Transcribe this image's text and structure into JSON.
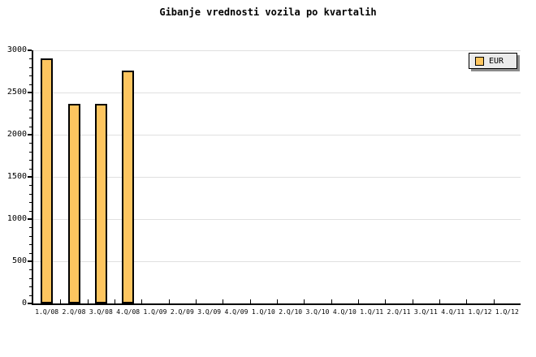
{
  "colors": {
    "background": "#FFFFFF",
    "bar_fill": "#FDC55F",
    "bar_border": "#000000",
    "grid": "#E0E0E0",
    "axis": "#000000",
    "legend_bg": "#EBEBEB",
    "legend_border": "#000000",
    "legend_shadow": "#8C8C8C"
  },
  "legend": {
    "label": "EUR"
  },
  "chart_data": {
    "type": "bar",
    "title": "Gibanje vrednosti vozila po kvartalih",
    "categories": [
      "1.Q/08",
      "2.Q/08",
      "3.Q/08",
      "4.Q/08",
      "1.Q/09",
      "2.Q/09",
      "3.Q/09",
      "4.Q/09",
      "1.Q/10",
      "2.Q/10",
      "3.Q/10",
      "4.Q/10",
      "1.Q/11",
      "2.Q/11",
      "3.Q/11",
      "4.Q/11",
      "1.Q/12",
      "1.Q/12"
    ],
    "series": [
      {
        "name": "EUR",
        "values": [
          2900,
          2370,
          2370,
          2760,
          null,
          null,
          null,
          null,
          null,
          null,
          null,
          null,
          null,
          null,
          null,
          null,
          null,
          null
        ]
      }
    ],
    "xlabel": "",
    "ylabel": "",
    "ylim": [
      0,
      3000
    ],
    "y_ticks": [
      0,
      500,
      1000,
      1500,
      2000,
      2500,
      3000
    ],
    "y_major_step": 500,
    "y_minor_step": 100,
    "grid": "horizontal-major",
    "legend_position": "top-right"
  }
}
